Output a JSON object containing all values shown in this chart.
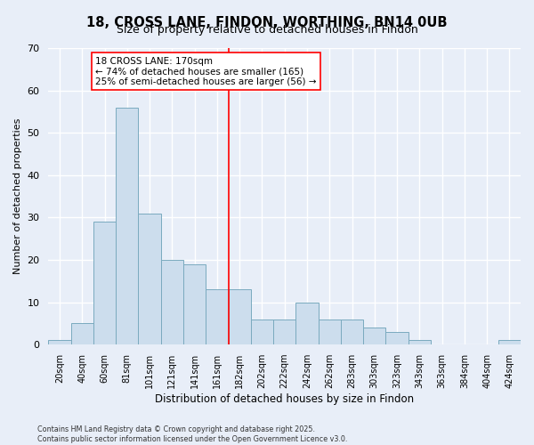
{
  "title": "18, CROSS LANE, FINDON, WORTHING, BN14 0UB",
  "subtitle": "Size of property relative to detached houses in Findon",
  "xlabel": "Distribution of detached houses by size in Findon",
  "ylabel": "Number of detached properties",
  "bar_labels": [
    "20sqm",
    "40sqm",
    "60sqm",
    "81sqm",
    "101sqm",
    "121sqm",
    "141sqm",
    "161sqm",
    "182sqm",
    "202sqm",
    "222sqm",
    "242sqm",
    "262sqm",
    "283sqm",
    "303sqm",
    "323sqm",
    "343sqm",
    "363sqm",
    "384sqm",
    "404sqm",
    "424sqm"
  ],
  "bar_values": [
    1,
    5,
    29,
    56,
    31,
    20,
    19,
    13,
    13,
    6,
    6,
    10,
    6,
    6,
    4,
    3,
    1,
    0,
    0,
    0,
    1
  ],
  "bar_color": "#ccdded",
  "bar_edge_color": "#7aaabf",
  "vline_x_index": 7.5,
  "vline_color": "red",
  "ylim": [
    0,
    70
  ],
  "yticks": [
    0,
    10,
    20,
    30,
    40,
    50,
    60,
    70
  ],
  "annotation_title": "18 CROSS LANE: 170sqm",
  "annotation_line1": "← 74% of detached houses are smaller (165)",
  "annotation_line2": "25% of semi-detached houses are larger (56) →",
  "annotation_box_color": "#ffffff",
  "annotation_box_edge": "red",
  "footer1": "Contains HM Land Registry data © Crown copyright and database right 2025.",
  "footer2": "Contains public sector information licensed under the Open Government Licence v3.0.",
  "bg_color": "#e8eef8",
  "grid_color": "#ffffff",
  "title_fontsize": 10.5,
  "subtitle_fontsize": 9
}
